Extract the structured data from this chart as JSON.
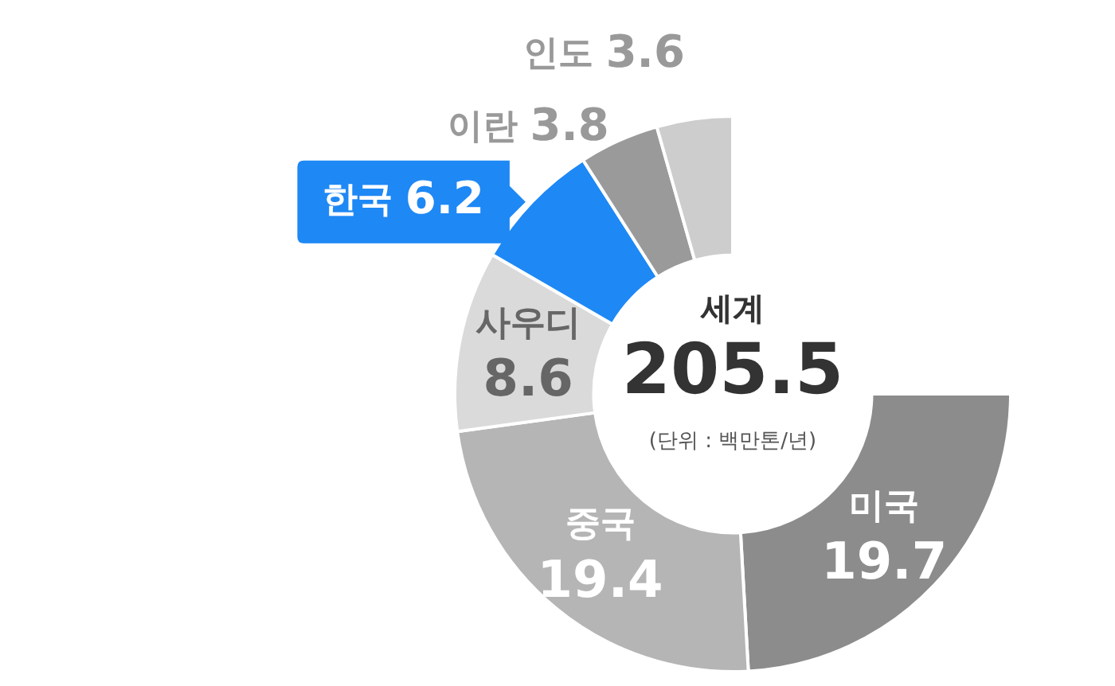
{
  "chart_data": {
    "type": "donut",
    "categories": [
      "미국",
      "중국",
      "사우디",
      "한국",
      "이란",
      "인도"
    ],
    "values": [
      19.7,
      19.4,
      8.6,
      6.2,
      3.8,
      3.6
    ],
    "colors": [
      "#8c8c8c",
      "#b5b5b5",
      "#dadada",
      "#1e88f5",
      "#9a9a9a",
      "#cdcdcd"
    ],
    "data_labels": true,
    "legend": false,
    "annotations": [
      "세계",
      "205.5",
      "(단위 : 백만톤/년)"
    ]
  }
}
